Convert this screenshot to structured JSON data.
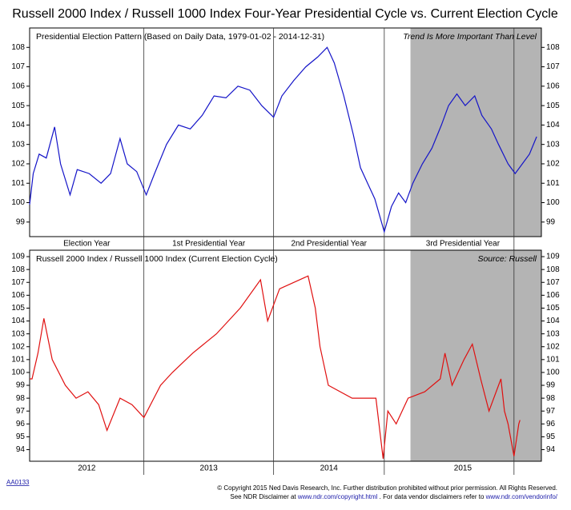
{
  "title": "Russell 2000 Index / Russell 1000 Index Four-Year Presidential Cycle vs. Current Election Cycle",
  "chart_data": [
    {
      "type": "line",
      "label": "Presidential Election Pattern (Based on Daily Data, 1979-01-02 - 2014-12-31)",
      "note": "Trend Is More Important Than Level",
      "color": "#1414c8",
      "x": [
        0,
        0.03,
        0.08,
        0.14,
        0.21,
        0.26,
        0.34,
        0.4,
        0.5,
        0.6,
        0.68,
        0.76,
        0.82,
        0.9,
        0.98,
        1.05,
        1.15,
        1.25,
        1.35,
        1.45,
        1.55,
        1.65,
        1.75,
        1.85,
        1.95,
        2.05,
        2.12,
        2.22,
        2.32,
        2.42,
        2.5,
        2.56,
        2.64,
        2.72,
        2.78,
        2.84,
        2.9,
        2.98,
        3.04,
        3.1,
        3.16,
        3.22,
        3.3,
        3.38,
        3.46,
        3.52,
        3.59,
        3.66,
        3.74,
        3.8,
        3.88,
        3.94,
        4.02,
        4.08,
        4.14,
        4.2,
        4.26
      ],
      "values": [
        99.9,
        101.5,
        102.5,
        102.3,
        103.9,
        102.0,
        100.4,
        101.7,
        101.5,
        101.0,
        101.5,
        103.3,
        102.0,
        101.6,
        100.4,
        101.5,
        103.0,
        104.0,
        103.8,
        104.5,
        105.5,
        105.4,
        106.0,
        105.8,
        105.0,
        104.4,
        105.5,
        106.3,
        107.0,
        107.5,
        108.0,
        107.2,
        105.5,
        103.5,
        101.8,
        101.0,
        100.2,
        98.5,
        99.8,
        100.5,
        100.0,
        101.0,
        102.0,
        102.8,
        104.0,
        105.0,
        105.6,
        105.0,
        105.5,
        104.5,
        103.8,
        103.0,
        102.0,
        101.5,
        102.0,
        102.5,
        103.4
      ],
      "xlim": [
        0,
        4.3
      ],
      "ylim": [
        98.25,
        109
      ],
      "yticks": [
        99,
        100,
        101,
        102,
        103,
        104,
        105,
        106,
        107,
        108
      ],
      "dividers": [
        0.96,
        2.05,
        2.98,
        4.07
      ],
      "shaded_from": 3.2,
      "periods": [
        "Election Year",
        "1st Presidential Year",
        "2nd Presidential Year",
        "3rd Presidential Year"
      ]
    },
    {
      "type": "line",
      "label": "Russell 2000 Index / Russell 1000 Index (Current Election Cycle)",
      "note": "Source:   Russell",
      "color": "#e01010",
      "x": [
        0,
        0.02,
        0.07,
        0.12,
        0.19,
        0.3,
        0.39,
        0.49,
        0.58,
        0.65,
        0.76,
        0.86,
        0.96,
        1.1,
        1.2,
        1.37,
        1.57,
        1.77,
        1.94,
        2.0,
        2.1,
        2.34,
        2.4,
        2.44,
        2.51,
        2.71,
        2.91,
        2.97,
        3.01,
        3.08,
        3.18,
        3.32,
        3.45,
        3.49,
        3.55,
        3.65,
        3.72,
        3.79,
        3.86,
        3.96,
        3.99,
        4.02,
        4.07,
        4.11,
        4.12
      ],
      "values": [
        99.5,
        99.5,
        101.5,
        104.2,
        101.0,
        99.0,
        98.0,
        98.5,
        97.5,
        95.5,
        98.0,
        97.5,
        96.5,
        99.0,
        100.0,
        101.5,
        103.0,
        105.0,
        107.2,
        104.0,
        106.5,
        107.5,
        105.0,
        102.0,
        99.0,
        98.0,
        98.0,
        93.3,
        97.0,
        96.0,
        98.0,
        98.5,
        99.5,
        101.5,
        99.0,
        101.0,
        102.2,
        99.5,
        97.0,
        99.5,
        97.0,
        96.0,
        93.5,
        96.0,
        96.3
      ],
      "xlim": [
        0,
        4.3
      ],
      "ylim": [
        93.1,
        109.5
      ],
      "yticks": [
        94,
        95,
        96,
        97,
        98,
        99,
        100,
        101,
        102,
        103,
        104,
        105,
        106,
        107,
        108,
        109
      ],
      "dividers": [
        0.96,
        2.05,
        2.98,
        4.07
      ],
      "shaded_from": 3.2,
      "periods": [
        "2012",
        "2013",
        "2014",
        "2015"
      ]
    }
  ],
  "footer": {
    "code": "AA0133",
    "line1": "© Copyright 2015 Ned Davis Research, Inc. Further distribution prohibited without prior permission. All Rights Reserved.",
    "line2": [
      "See NDR Disclaimer at ",
      "www.ndr.com/copyright.html",
      " . For data vendor disclaimers refer to ",
      "www.ndr.com/vendorinfo/"
    ]
  }
}
